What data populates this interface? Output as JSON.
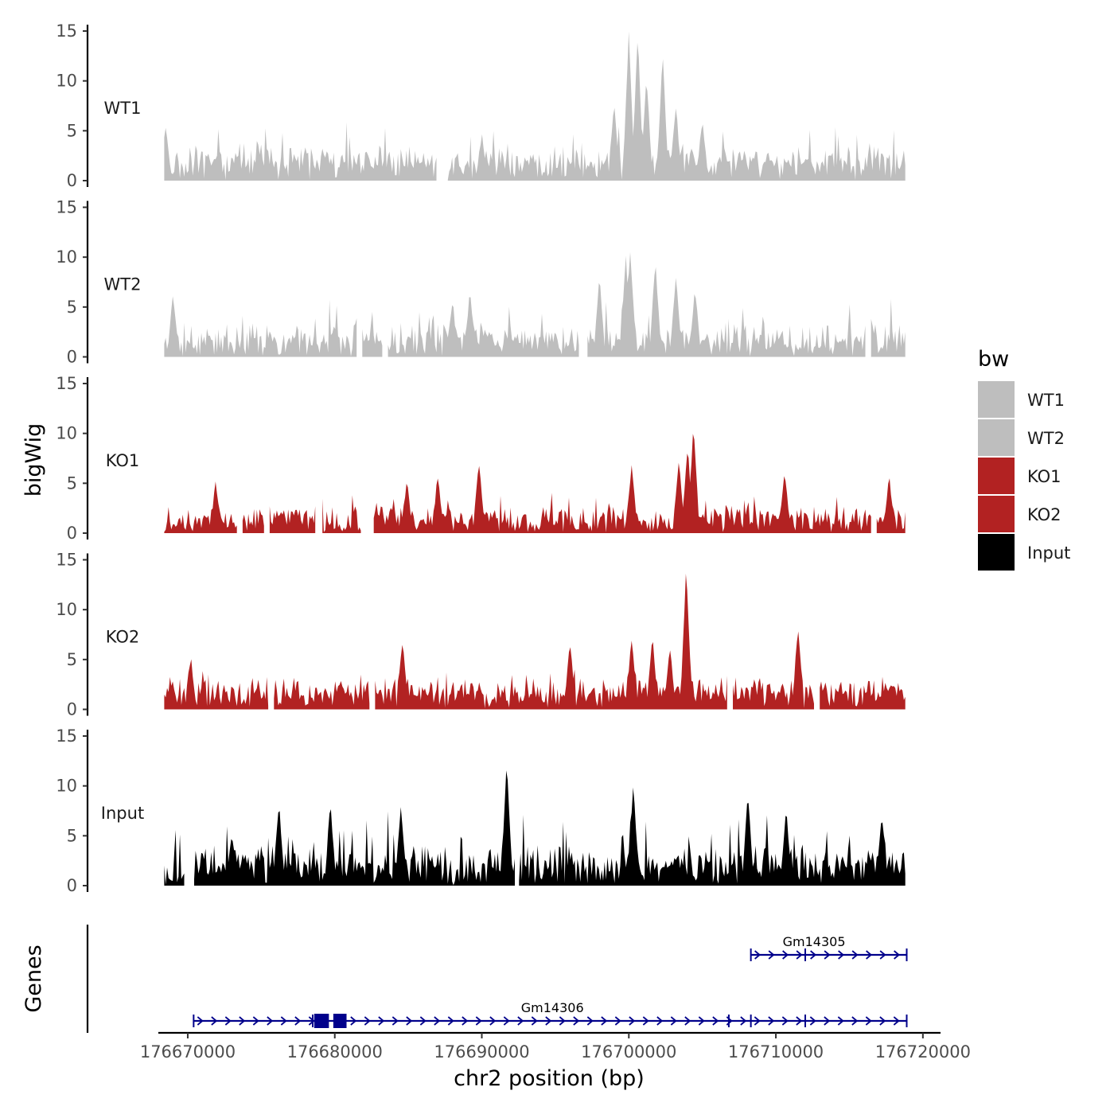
{
  "chart_data": {
    "type": "area",
    "title": "",
    "ylabel": "bigWig",
    "genes_label": "Genes",
    "xlabel": "chr2 position (bp)",
    "xlim": [
      176668000,
      176721200
    ],
    "ylim": [
      0,
      15
    ],
    "x_ticks": [
      176670000,
      176680000,
      176690000,
      176700000,
      176710000,
      176720000
    ],
    "x_tick_labels": [
      "176670000",
      "176680000",
      "176690000",
      "176700000",
      "176710000",
      "176720000"
    ],
    "y_ticks": [
      0,
      5,
      10,
      15
    ],
    "y_tick_labels": [
      "0",
      "5",
      "10",
      "15"
    ],
    "data_range": [
      176668400,
      176718800
    ],
    "legend": {
      "title": "bw",
      "position": "right",
      "entries": [
        {
          "label": "WT1",
          "color": "#bebebe"
        },
        {
          "label": "WT2",
          "color": "#bebebe"
        },
        {
          "label": "KO1",
          "color": "#b22222"
        },
        {
          "label": "KO2",
          "color": "#b22222"
        },
        {
          "label": "Input",
          "color": "#000000"
        }
      ]
    },
    "series": [
      {
        "name": "WT1",
        "color": "#bebebe",
        "seed": 11,
        "base": 1.9,
        "noise": 2.3,
        "gaps": [
          [
            176687000,
            176687600
          ]
        ],
        "peaks": [
          [
            176668500,
            5.2
          ],
          [
            176700000,
            14.8
          ],
          [
            176700600,
            14.6
          ],
          [
            176701200,
            10.5
          ],
          [
            176702300,
            12.5
          ],
          [
            176703200,
            7.2
          ],
          [
            176699000,
            7.5
          ],
          [
            176705000,
            6.0
          ],
          [
            176690000,
            4.5
          ]
        ]
      },
      {
        "name": "WT2",
        "color": "#bebebe",
        "seed": 23,
        "base": 1.7,
        "noise": 2.2,
        "gaps": [
          [
            176681500,
            176681800
          ],
          [
            176683300,
            176683600
          ],
          [
            176696700,
            176697100
          ],
          [
            176716100,
            176716400
          ]
        ],
        "peaks": [
          [
            176669000,
            6.0
          ],
          [
            176689200,
            6.5
          ],
          [
            176699800,
            9.8
          ],
          [
            176700100,
            10.5
          ],
          [
            176701800,
            9.5
          ],
          [
            176703200,
            8.0
          ],
          [
            176698000,
            7.8
          ],
          [
            176704500,
            6.5
          ],
          [
            176688000,
            5.0
          ]
        ]
      },
      {
        "name": "KO1",
        "color": "#b22222",
        "seed": 37,
        "base": 1.1,
        "noise": 2.0,
        "gaps": [
          [
            176673400,
            176673700
          ],
          [
            176675200,
            176675500
          ],
          [
            176678700,
            176679100
          ],
          [
            176681800,
            176682600
          ],
          [
            176716500,
            176716800
          ]
        ],
        "peaks": [
          [
            176704400,
            10.5
          ],
          [
            176704000,
            8.5
          ],
          [
            176703400,
            7.0
          ],
          [
            176689800,
            6.8
          ],
          [
            176700200,
            6.5
          ],
          [
            176687000,
            5.5
          ],
          [
            176717700,
            5.5
          ],
          [
            176671900,
            5.0
          ],
          [
            176684900,
            5.0
          ],
          [
            176710600,
            5.8
          ]
        ]
      },
      {
        "name": "KO2",
        "color": "#b22222",
        "seed": 51,
        "base": 1.6,
        "noise": 2.1,
        "gaps": [
          [
            176675500,
            176675800
          ],
          [
            176682400,
            176682700
          ],
          [
            176706700,
            176707000
          ],
          [
            176712600,
            176712900
          ]
        ],
        "peaks": [
          [
            176703900,
            14.0
          ],
          [
            176700200,
            7.0
          ],
          [
            176701600,
            7.0
          ],
          [
            176711500,
            8.0
          ],
          [
            176684600,
            6.5
          ],
          [
            176696000,
            6.5
          ],
          [
            176670200,
            5.0
          ],
          [
            176702800,
            6.0
          ]
        ]
      },
      {
        "name": "Input",
        "color": "#000000",
        "seed": 67,
        "base": 2.5,
        "noise": 2.4,
        "gaps": [
          [
            176669800,
            176670400
          ],
          [
            176692300,
            176692500
          ]
        ],
        "peaks": [
          [
            176691700,
            12.2
          ],
          [
            176700300,
            10.0
          ],
          [
            176676200,
            8.0
          ],
          [
            176679700,
            8.0
          ],
          [
            176708100,
            9.0
          ],
          [
            176710700,
            7.5
          ],
          [
            176684500,
            7.5
          ],
          [
            176673000,
            5.0
          ],
          [
            176717200,
            7.0
          ]
        ]
      }
    ],
    "genes": [
      {
        "name": "Gm14305",
        "strand": "+",
        "start": 176708300,
        "end": 176718900,
        "row": 1,
        "label_x": 176712600,
        "introns_ticks": [
          176712000
        ]
      },
      {
        "name": "Gm14306",
        "strand": "+",
        "start": 176670400,
        "end": 176718900,
        "row": 2,
        "label_x": 176694800,
        "exons": [
          [
            176678600,
            176679600
          ],
          [
            176679900,
            176680800
          ]
        ],
        "introns_ticks": [
          176678500,
          176706800,
          176708300,
          176712000
        ]
      }
    ]
  }
}
